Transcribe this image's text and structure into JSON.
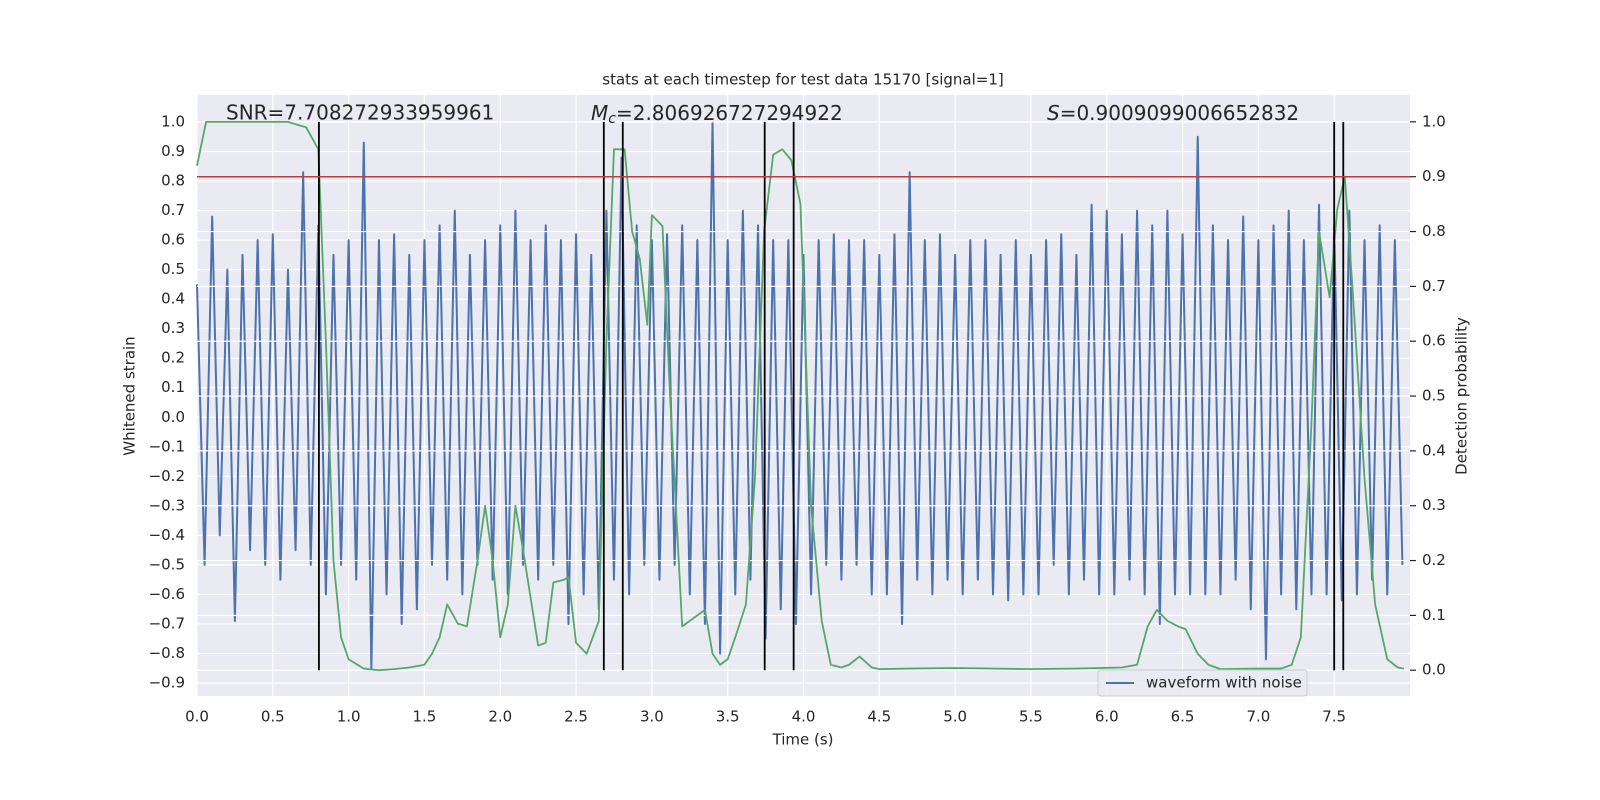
{
  "chart_data": {
    "type": "line",
    "title": "stats at each timestep for test data 15170 [signal=1]",
    "xlabel": "Time (s)",
    "ylabel": "Whitened strain",
    "y2label": "Detection probability",
    "annotations": [
      {
        "text": "SNR=7.708272933959961"
      },
      {
        "symbol": "M",
        "subscript": "c",
        "text": "=2.806926727294922"
      },
      {
        "symbol": "S",
        "text": "=0.9009099006652832"
      }
    ],
    "xlim": [
      0,
      8
    ],
    "ylim": [
      -0.944,
      1.0915
    ],
    "y2lim": [
      -0.047,
      1.049
    ],
    "xticks": [
      {
        "value": 0,
        "label": "0.0"
      },
      {
        "value": 0.5,
        "label": "0.5"
      },
      {
        "value": 1,
        "label": "1.0"
      },
      {
        "value": 1.5,
        "label": "1.5"
      },
      {
        "value": 2,
        "label": "2.0"
      },
      {
        "value": 2.5,
        "label": "2.5"
      },
      {
        "value": 3,
        "label": "3.0"
      },
      {
        "value": 3.5,
        "label": "3.5"
      },
      {
        "value": 4,
        "label": "4.0"
      },
      {
        "value": 4.5,
        "label": "4.5"
      },
      {
        "value": 5,
        "label": "5.0"
      },
      {
        "value": 5.5,
        "label": "5.5"
      },
      {
        "value": 6,
        "label": "6.0"
      },
      {
        "value": 6.5,
        "label": "6.5"
      },
      {
        "value": 7,
        "label": "7.0"
      },
      {
        "value": 7.5,
        "label": "7.5"
      }
    ],
    "yticks": [
      {
        "value": -0.9,
        "label": "−0.9"
      },
      {
        "value": -0.8,
        "label": "−0.8"
      },
      {
        "value": -0.7,
        "label": "−0.7"
      },
      {
        "value": -0.6,
        "label": "−0.6"
      },
      {
        "value": -0.5,
        "label": "−0.5"
      },
      {
        "value": -0.4,
        "label": "−0.4"
      },
      {
        "value": -0.3,
        "label": "−0.3"
      },
      {
        "value": -0.2,
        "label": "−0.2"
      },
      {
        "value": -0.1,
        "label": "−0.1"
      },
      {
        "value": 0,
        "label": "0.0"
      },
      {
        "value": 0.1,
        "label": "0.1"
      },
      {
        "value": 0.2,
        "label": "0.2"
      },
      {
        "value": 0.3,
        "label": "0.3"
      },
      {
        "value": 0.4,
        "label": "0.4"
      },
      {
        "value": 0.5,
        "label": "0.5"
      },
      {
        "value": 0.6,
        "label": "0.6"
      },
      {
        "value": 0.7,
        "label": "0.7"
      },
      {
        "value": 0.8,
        "label": "0.8"
      },
      {
        "value": 0.9,
        "label": "0.9"
      },
      {
        "value": 1,
        "label": "1.0"
      }
    ],
    "y2ticks": [
      {
        "value": 0,
        "label": "0.0"
      },
      {
        "value": 0.1,
        "label": "0.1"
      },
      {
        "value": 0.2,
        "label": "0.2"
      },
      {
        "value": 0.3,
        "label": "0.3"
      },
      {
        "value": 0.4,
        "label": "0.4"
      },
      {
        "value": 0.5,
        "label": "0.5"
      },
      {
        "value": 0.6,
        "label": "0.6"
      },
      {
        "value": 0.7,
        "label": "0.7"
      },
      {
        "value": 0.8,
        "label": "0.8"
      },
      {
        "value": 0.9,
        "label": "0.9"
      },
      {
        "value": 1,
        "label": "1.0"
      }
    ],
    "grid": true,
    "legend": "lower right",
    "threshold": {
      "value": 0.9,
      "axis": "y2",
      "color": "#c03b3b"
    },
    "vlines": {
      "x": [
        0.804,
        2.683,
        2.808,
        3.744,
        3.935,
        7.5,
        7.56
      ],
      "ymin": 0,
      "ymax": 1,
      "axis": "y2",
      "color": "#000000"
    },
    "series": [
      {
        "name": "waveform with noise",
        "color": "#4c72b0",
        "x": [
          0,
          0.05,
          0.1,
          0.15,
          0.2,
          0.25,
          0.3,
          0.35,
          0.4,
          0.45,
          0.5,
          0.55,
          0.6,
          0.65,
          0.7,
          0.75,
          0.8,
          0.85,
          0.9,
          0.95,
          1,
          1.05,
          1.1,
          1.15,
          1.2,
          1.25,
          1.3,
          1.35,
          1.4,
          1.45,
          1.5,
          1.55,
          1.6,
          1.65,
          1.7,
          1.75,
          1.8,
          1.85,
          1.9,
          1.95,
          2,
          2.05,
          2.1,
          2.15,
          2.2,
          2.25,
          2.3,
          2.35,
          2.4,
          2.45,
          2.5,
          2.55,
          2.6,
          2.65,
          2.7,
          2.75,
          2.8,
          2.85,
          2.9,
          2.95,
          3,
          3.05,
          3.1,
          3.15,
          3.2,
          3.25,
          3.3,
          3.35,
          3.4,
          3.45,
          3.5,
          3.55,
          3.6,
          3.65,
          3.7,
          3.75,
          3.8,
          3.85,
          3.9,
          3.95,
          4,
          4.05,
          4.1,
          4.15,
          4.2,
          4.25,
          4.3,
          4.35,
          4.4,
          4.45,
          4.5,
          4.55,
          4.6,
          4.65,
          4.7,
          4.75,
          4.8,
          4.85,
          4.9,
          4.95,
          5,
          5.05,
          5.1,
          5.15,
          5.2,
          5.25,
          5.3,
          5.35,
          5.4,
          5.45,
          5.5,
          5.55,
          5.6,
          5.65,
          5.7,
          5.75,
          5.8,
          5.85,
          5.9,
          5.95,
          6,
          6.05,
          6.1,
          6.15,
          6.2,
          6.25,
          6.3,
          6.35,
          6.4,
          6.45,
          6.5,
          6.55,
          6.6,
          6.65,
          6.7,
          6.75,
          6.8,
          6.85,
          6.9,
          6.95,
          7,
          7.05,
          7.1,
          7.15,
          7.2,
          7.25,
          7.3,
          7.35,
          7.4,
          7.45,
          7.5,
          7.55,
          7.6,
          7.65,
          7.7,
          7.75,
          7.8,
          7.85,
          7.9,
          7.95
        ],
        "values": [
          0.45,
          -0.5,
          0.68,
          -0.4,
          0.5,
          -0.69,
          0.55,
          -0.45,
          0.6,
          -0.5,
          0.62,
          -0.55,
          0.5,
          -0.45,
          0.83,
          -0.5,
          0.65,
          -0.6,
          0.55,
          -0.5,
          0.6,
          -0.55,
          0.93,
          -0.85,
          0.6,
          -0.6,
          0.62,
          -0.7,
          0.55,
          -0.65,
          0.6,
          -0.5,
          0.65,
          -0.55,
          0.7,
          -0.6,
          0.55,
          -0.5,
          0.6,
          -0.55,
          0.65,
          -0.6,
          0.7,
          -0.5,
          0.6,
          -0.55,
          0.65,
          -0.5,
          0.6,
          -0.7,
          0.62,
          -0.6,
          0.55,
          -0.65,
          0.7,
          -0.55,
          0.88,
          -0.6,
          0.65,
          -0.5,
          0.6,
          -0.55,
          0.62,
          -0.5,
          0.65,
          -0.6,
          0.6,
          -0.7,
          1.0,
          -0.8,
          0.6,
          -0.6,
          0.7,
          -0.55,
          0.65,
          -0.75,
          0.6,
          -0.65,
          0.6,
          -0.7,
          0.55,
          -0.6,
          0.6,
          -0.5,
          0.62,
          -0.55,
          0.6,
          -0.5,
          0.6,
          -0.6,
          0.55,
          -0.6,
          0.62,
          -0.7,
          0.83,
          -0.55,
          0.6,
          -0.6,
          0.62,
          -0.55,
          0.55,
          -0.6,
          0.6,
          -0.55,
          0.6,
          -0.6,
          0.55,
          -0.62,
          0.6,
          -0.6,
          0.55,
          -0.6,
          0.6,
          -0.5,
          0.62,
          -0.6,
          0.55,
          -0.55,
          0.72,
          -0.6,
          0.7,
          -0.6,
          0.62,
          -0.55,
          0.7,
          -0.6,
          0.65,
          -0.7,
          0.7,
          -0.6,
          0.62,
          -0.6,
          0.95,
          -0.6,
          0.65,
          -0.6,
          0.6,
          -0.55,
          0.68,
          -0.65,
          0.6,
          -0.82,
          0.65,
          -0.6,
          0.7,
          -0.65,
          0.6,
          -0.6,
          0.72,
          -0.6,
          0.65,
          -0.62,
          0.7,
          -0.6,
          0.6,
          -0.55,
          0.65,
          -0.6,
          0.6,
          -0.5
        ]
      },
      {
        "color": "#55a868",
        "axis": "y2",
        "x": [
          0,
          0.06,
          0.3,
          0.6,
          0.72,
          0.8,
          0.85,
          0.9,
          0.95,
          1,
          1.1,
          1.2,
          1.3,
          1.4,
          1.5,
          1.55,
          1.6,
          1.65,
          1.72,
          1.78,
          1.85,
          1.9,
          1.95,
          2,
          2.05,
          2.1,
          2.15,
          2.25,
          2.3,
          2.35,
          2.42,
          2.45,
          2.5,
          2.57,
          2.65,
          2.7,
          2.75,
          2.82,
          2.87,
          2.92,
          2.97,
          3,
          3.07,
          3.12,
          3.2,
          3.3,
          3.35,
          3.4,
          3.45,
          3.5,
          3.55,
          3.62,
          3.68,
          3.74,
          3.8,
          3.86,
          3.92,
          3.98,
          4.05,
          4.12,
          4.18,
          4.25,
          4.3,
          4.37,
          4.45,
          4.5,
          4.7,
          5,
          5.5,
          5.8,
          6.1,
          6.2,
          6.27,
          6.33,
          6.4,
          6.47,
          6.52,
          6.6,
          6.67,
          6.75,
          7,
          7.15,
          7.22,
          7.28,
          7.35,
          7.4,
          7.47,
          7.52,
          7.57,
          7.62,
          7.7,
          7.77,
          7.85,
          7.92,
          7.96
        ],
        "values": [
          0.92,
          1.0,
          1.0,
          1.0,
          0.99,
          0.95,
          0.6,
          0.2,
          0.06,
          0.02,
          0.003,
          0.0,
          0.002,
          0.005,
          0.01,
          0.03,
          0.06,
          0.12,
          0.085,
          0.08,
          0.2,
          0.3,
          0.2,
          0.06,
          0.12,
          0.3,
          0.22,
          0.045,
          0.05,
          0.16,
          0.165,
          0.17,
          0.05,
          0.03,
          0.09,
          0.6,
          0.95,
          0.95,
          0.8,
          0.75,
          0.63,
          0.83,
          0.81,
          0.5,
          0.08,
          0.1,
          0.11,
          0.03,
          0.01,
          0.02,
          0.06,
          0.12,
          0.35,
          0.8,
          0.94,
          0.95,
          0.93,
          0.85,
          0.3,
          0.09,
          0.01,
          0.005,
          0.01,
          0.025,
          0.005,
          0.002,
          0.003,
          0.004,
          0.002,
          0.003,
          0.005,
          0.01,
          0.08,
          0.11,
          0.09,
          0.08,
          0.075,
          0.03,
          0.01,
          0.002,
          0.003,
          0.003,
          0.01,
          0.06,
          0.45,
          0.8,
          0.68,
          0.84,
          0.9,
          0.7,
          0.35,
          0.12,
          0.02,
          0.005,
          0.003
        ]
      }
    ]
  }
}
